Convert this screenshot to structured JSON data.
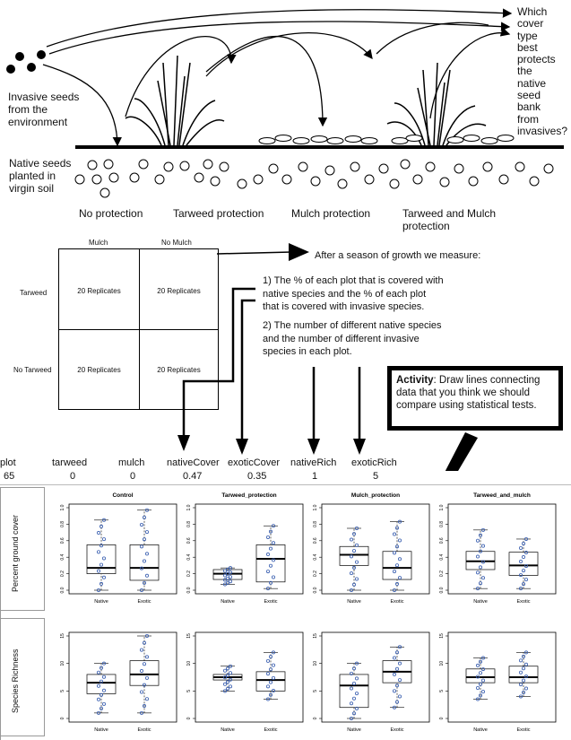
{
  "top": {
    "invasive_label": [
      "Invasive seeds",
      "from the",
      "environment"
    ],
    "native_label": [
      "Native seeds",
      "planted in",
      "virgin soil"
    ],
    "question": [
      "Which",
      "cover",
      "type",
      "best",
      "protects",
      "the",
      "native",
      "seed",
      "bank",
      "from",
      "invasives?"
    ],
    "treatments": [
      "No protection",
      "Tarweed protection",
      "Mulch protection",
      "Tarweed and Mulch",
      "protection"
    ]
  },
  "design": {
    "col_headers": [
      "Mulch",
      "No Mulch"
    ],
    "row_headers": [
      "Tarweed",
      "No Tarweed"
    ],
    "cell_text": "20 Replicates",
    "measure_title": "After a season of growth we measure:",
    "measure_1": [
      "1) The % of each plot that is covered with",
      "native species and the % of each plot",
      "that is covered with invasive species."
    ],
    "measure_2": [
      "2) The number of different native species",
      "and the number of different invasive",
      "species in each plot."
    ]
  },
  "activity": {
    "bold": "Activity",
    "text": ": Draw lines connecting data that you think we should compare using statistical tests."
  },
  "table": {
    "headers": [
      "plot",
      "tarweed",
      "mulch",
      "nativeCover",
      "exoticCover",
      "nativeRich",
      "exoticRich"
    ],
    "values": [
      "65",
      "0",
      "0",
      "0.47",
      "0.35",
      "1",
      "5"
    ]
  },
  "row_labels": [
    "Percent ground cover",
    "Species Richness"
  ],
  "chart_data": [
    {
      "type": "box",
      "title": "Control",
      "ylabel": "Percent ground cover",
      "ylim": [
        0,
        1
      ],
      "yticks": [
        "0.0",
        "0.2",
        "0.4",
        "0.6",
        "0.8",
        "1.0"
      ],
      "categories": [
        "Native",
        "Exotic"
      ],
      "boxes": [
        {
          "min": 0.0,
          "q1": 0.2,
          "median": 0.27,
          "q3": 0.55,
          "max": 0.85
        },
        {
          "min": 0.0,
          "q1": 0.12,
          "median": 0.27,
          "q3": 0.55,
          "max": 0.97
        }
      ]
    },
    {
      "type": "box",
      "title": "Tarweed_protection",
      "ylim": [
        0,
        1
      ],
      "yticks": [
        "0.0",
        "0.2",
        "0.4",
        "0.6",
        "0.8",
        "1.0"
      ],
      "categories": [
        "Native",
        "Exotic"
      ],
      "boxes": [
        {
          "min": 0.07,
          "q1": 0.13,
          "median": 0.2,
          "q3": 0.25,
          "max": 0.27
        },
        {
          "min": 0.02,
          "q1": 0.1,
          "median": 0.38,
          "q3": 0.55,
          "max": 0.78
        }
      ]
    },
    {
      "type": "box",
      "title": "Mulch_protection",
      "ylim": [
        0,
        1
      ],
      "yticks": [
        "0.0",
        "0.2",
        "0.4",
        "0.6",
        "0.8",
        "1.0"
      ],
      "categories": [
        "Native",
        "Exotic"
      ],
      "boxes": [
        {
          "min": 0.0,
          "q1": 0.3,
          "median": 0.43,
          "q3": 0.53,
          "max": 0.75
        },
        {
          "min": 0.0,
          "q1": 0.13,
          "median": 0.27,
          "q3": 0.47,
          "max": 0.83
        }
      ]
    },
    {
      "type": "box",
      "title": "Tarweed_and_mulch",
      "ylim": [
        0,
        1
      ],
      "yticks": [
        "0.0",
        "0.2",
        "0.4",
        "0.6",
        "0.8",
        "1.0"
      ],
      "categories": [
        "Native",
        "Exotic"
      ],
      "boxes": [
        {
          "min": 0.02,
          "q1": 0.25,
          "median": 0.35,
          "q3": 0.47,
          "max": 0.73
        },
        {
          "min": 0.02,
          "q1": 0.18,
          "median": 0.3,
          "q3": 0.46,
          "max": 0.62
        }
      ]
    },
    {
      "type": "box",
      "ylabel": "Species Richness",
      "ylim": [
        0,
        15
      ],
      "yticks": [
        "0",
        "5",
        "10",
        "15"
      ],
      "categories": [
        "Native",
        "Exotic"
      ],
      "boxes": [
        {
          "min": 1,
          "q1": 4.5,
          "median": 6.5,
          "q3": 8,
          "max": 10
        },
        {
          "min": 1,
          "q1": 6,
          "median": 8,
          "q3": 10.5,
          "max": 15
        }
      ]
    },
    {
      "type": "box",
      "ylim": [
        0,
        15
      ],
      "yticks": [
        "0",
        "5",
        "10",
        "15"
      ],
      "categories": [
        "Native",
        "Exotic"
      ],
      "boxes": [
        {
          "min": 5,
          "q1": 7,
          "median": 7.5,
          "q3": 8,
          "max": 9.5
        },
        {
          "min": 3.5,
          "q1": 5,
          "median": 7,
          "q3": 8.5,
          "max": 12
        }
      ]
    },
    {
      "type": "box",
      "ylim": [
        0,
        15
      ],
      "yticks": [
        "0",
        "5",
        "10",
        "15"
      ],
      "categories": [
        "Native",
        "Exotic"
      ],
      "boxes": [
        {
          "min": 0,
          "q1": 2,
          "median": 6,
          "q3": 8,
          "max": 10
        },
        {
          "min": 2,
          "q1": 6.5,
          "median": 8.5,
          "q3": 10.5,
          "max": 13
        }
      ]
    },
    {
      "type": "box",
      "ylim": [
        0,
        15
      ],
      "yticks": [
        "0",
        "5",
        "10",
        "15"
      ],
      "categories": [
        "Native",
        "Exotic"
      ],
      "boxes": [
        {
          "min": 3.5,
          "q1": 6.5,
          "median": 7.5,
          "q3": 9,
          "max": 11
        },
        {
          "min": 4,
          "q1": 6.5,
          "median": 7.5,
          "q3": 9.5,
          "max": 12
        }
      ]
    }
  ]
}
